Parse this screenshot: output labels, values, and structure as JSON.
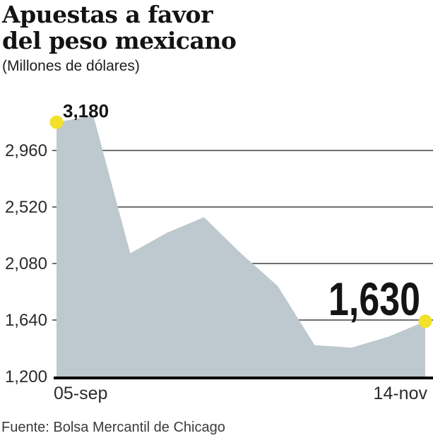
{
  "header": {
    "title_line1": "Apuestas a favor",
    "title_line2": "del peso mexicano",
    "subtitle": "(Millones de dólares)"
  },
  "footer": {
    "source": "Fuente: Bolsa Mercantil de Chicago"
  },
  "chart_data": {
    "type": "area",
    "title": "Apuestas a favor del peso mexicano",
    "units_label": "Millones de dólares",
    "grid": "horizontal",
    "legend": "none",
    "x_axis": {
      "first_label": "05-sep",
      "last_label": "14-nov",
      "points_are_weekly": true
    },
    "y_axis": {
      "ticks": [
        2960,
        2520,
        2080,
        1640,
        1200
      ],
      "tick_labels": [
        "2,960",
        "2,520",
        "2,080",
        "1,640",
        "1,200"
      ],
      "baseline_value": 1200,
      "range_shown": [
        1200,
        3230
      ]
    },
    "series": [
      {
        "name": "Apuestas a favor del peso mexicano",
        "values": [
          3180,
          3230,
          2160,
          2320,
          2440,
          2160,
          1905,
          1445,
          1425,
          1510,
          1630
        ]
      }
    ],
    "annotations": [
      {
        "label": "3,180",
        "point_index": 0,
        "value": 3180,
        "style": "small-bold"
      },
      {
        "label": "1,630",
        "point_index": 10,
        "value": 1630,
        "style": "big-condensed"
      }
    ],
    "colors": {
      "area_fill": "#bdc9ce",
      "marker": "#f2e129",
      "gridline": "#6f6f6f",
      "baseline": "#000000",
      "axis_text": "#2b2b2b",
      "annotation_text": "#141414"
    }
  }
}
